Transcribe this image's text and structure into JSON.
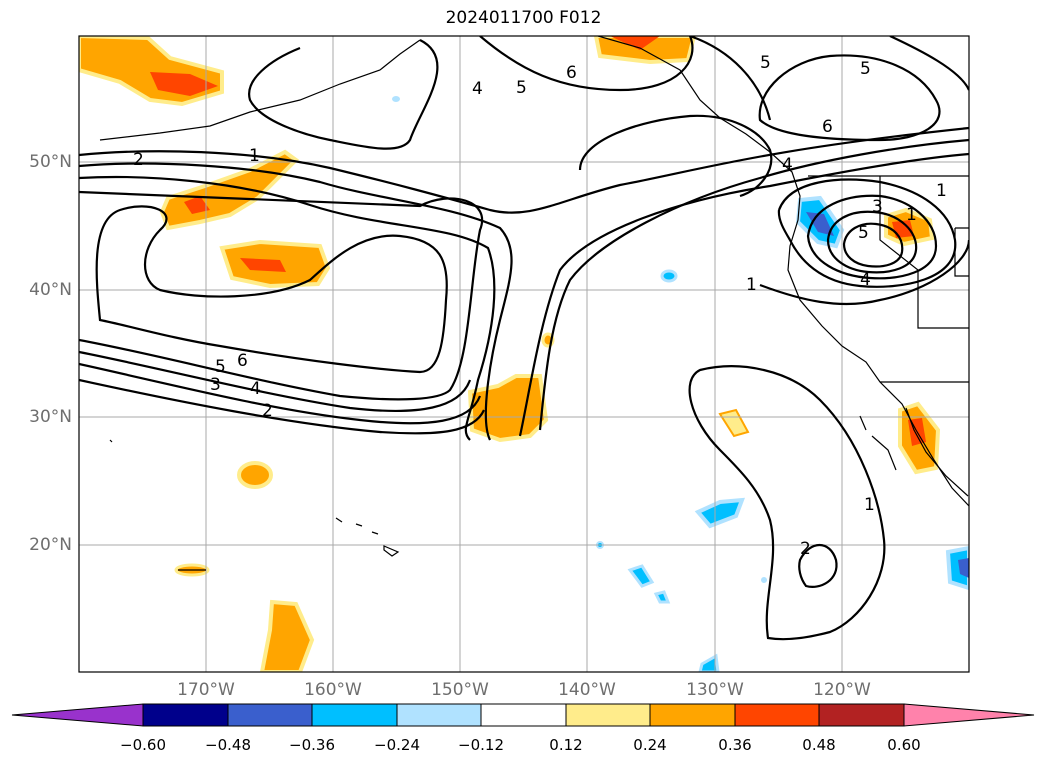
{
  "map": {
    "title": "2024011700 F012",
    "lon_labels": [
      "170°W",
      "160°W",
      "150°W",
      "140°W",
      "130°W",
      "120°W"
    ],
    "lat_labels": [
      "50°N",
      "40°N",
      "30°N",
      "20°N"
    ],
    "contour_labels": [
      "1",
      "2",
      "3",
      "4",
      "5",
      "6"
    ],
    "colorbar": {
      "ticks": [
        "−0.60",
        "−0.48",
        "−0.36",
        "−0.24",
        "−0.12",
        "0.12",
        "0.24",
        "0.36",
        "0.48",
        "0.60"
      ],
      "colors": [
        "#9932cc",
        "#00008b",
        "#3a5fcd",
        "#00bfff",
        "#b0e2ff",
        "#ffffff",
        "#ffec8b",
        "#ffa500",
        "#ff4500",
        "#b22222",
        "#ff82ab"
      ]
    },
    "grid_color": "#a9a9a9"
  }
}
